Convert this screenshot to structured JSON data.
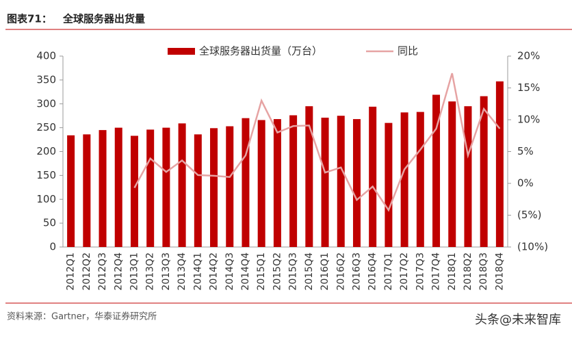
{
  "header": {
    "label": "图表71：",
    "title": "全球服务器出货量"
  },
  "source": "资料来源：Gartner，华泰证券研究所",
  "watermark": "头条@未来智库",
  "chart_data": {
    "type": "bar",
    "categories": [
      "2012Q1",
      "2012Q2",
      "2012Q3",
      "2012Q4",
      "2013Q1",
      "2013Q2",
      "2013Q3",
      "2013Q4",
      "2014Q1",
      "2014Q2",
      "2014Q3",
      "2014Q4",
      "2015Q1",
      "2015Q2",
      "2015Q3",
      "2015Q4",
      "2016Q1",
      "2016Q2",
      "2016Q3",
      "2016Q4",
      "2017Q1",
      "2017Q2",
      "2017Q3",
      "2017Q4",
      "2018Q1",
      "2018Q2",
      "2018Q3",
      "2018Q4"
    ],
    "series": [
      {
        "name": "全球服务器出货量（万台）",
        "type": "bar",
        "color": "#c00000",
        "values": [
          234,
          236,
          245,
          250,
          233,
          246,
          250,
          259,
          236,
          249,
          253,
          270,
          266,
          268,
          276,
          295,
          271,
          275,
          268,
          294,
          260,
          282,
          283,
          319,
          305,
          295,
          316,
          347
        ]
      },
      {
        "name": "同比",
        "type": "line",
        "axis": "y2",
        "color": "#e6a3a3",
        "values": [
          null,
          null,
          null,
          null,
          -0.7,
          3.9,
          1.8,
          3.6,
          1.3,
          1.2,
          1.0,
          4.4,
          13.0,
          8.0,
          9.0,
          9.1,
          1.7,
          2.5,
          -2.6,
          -0.5,
          -4.2,
          2.2,
          5.3,
          8.6,
          17.3,
          4.4,
          11.7,
          8.6
        ]
      }
    ],
    "ylim": [
      0,
      400
    ],
    "yticks": [
      0,
      50,
      100,
      150,
      200,
      250,
      300,
      350,
      400
    ],
    "y2lim": [
      -10,
      20
    ],
    "y2ticks": [
      {
        "value": -10,
        "label": "(10%)"
      },
      {
        "value": -5,
        "label": "(5%)"
      },
      {
        "value": 0,
        "label": "0%"
      },
      {
        "value": 5,
        "label": "5%"
      },
      {
        "value": 10,
        "label": "10%"
      },
      {
        "value": 15,
        "label": "15%"
      },
      {
        "value": 20,
        "label": "20%"
      }
    ],
    "grid": false,
    "legend": "top"
  }
}
